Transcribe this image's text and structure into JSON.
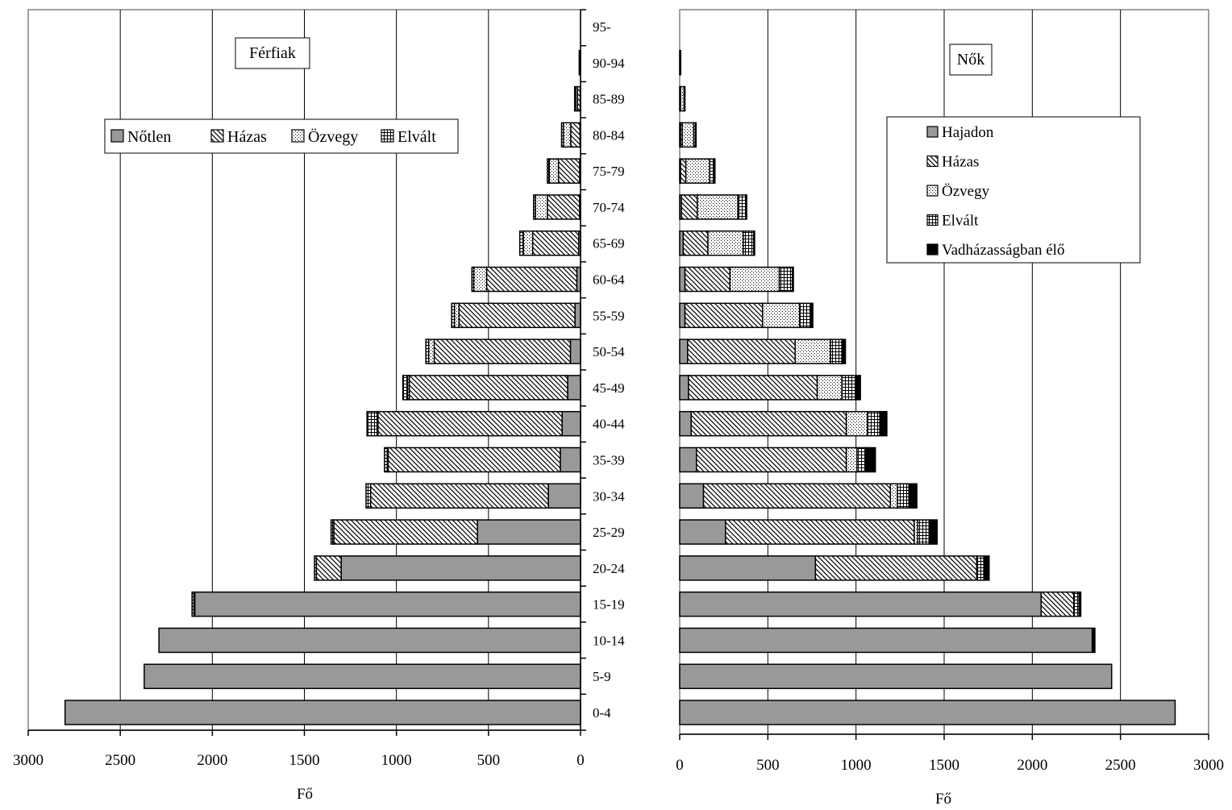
{
  "chart_data": [
    {
      "type": "bar",
      "orientation": "horizontal",
      "stacked": true,
      "direction": "right-to-left",
      "title": "Férfiak",
      "xlabel": "Fő",
      "xlim": [
        0,
        3000
      ],
      "xticks": [
        "3000",
        "2500",
        "2000",
        "1500",
        "1000",
        "500",
        "0"
      ],
      "grid": true,
      "legend": "top-left, horizontal",
      "categories": [
        "0-4",
        "5-9",
        "10-14",
        "15-19",
        "20-24",
        "25-29",
        "30-34",
        "35-39",
        "40-44",
        "45-49",
        "50-54",
        "55-59",
        "60-64",
        "65-69",
        "70-74",
        "75-79",
        "80-84",
        "85-89",
        "90-94",
        "95-"
      ],
      "series": [
        {
          "name": "Nőtlen",
          "pattern": "solid",
          "values": [
            2800,
            2370,
            2290,
            2095,
            1300,
            560,
            175,
            110,
            100,
            70,
            55,
            30,
            20,
            10,
            5,
            5,
            3,
            2,
            1,
            0
          ]
        },
        {
          "name": "Házas",
          "pattern": "diagonal",
          "values": [
            0,
            0,
            0,
            5,
            135,
            780,
            965,
            935,
            1000,
            860,
            740,
            630,
            490,
            250,
            175,
            115,
            50,
            15,
            5,
            0
          ]
        },
        {
          "name": "Özvegy",
          "pattern": "dotted",
          "values": [
            0,
            0,
            0,
            0,
            0,
            0,
            0,
            5,
            5,
            10,
            30,
            25,
            70,
            50,
            65,
            50,
            40,
            10,
            0,
            0
          ]
        },
        {
          "name": "Elvált",
          "pattern": "grid",
          "values": [
            0,
            0,
            0,
            10,
            10,
            15,
            25,
            15,
            55,
            25,
            15,
            15,
            10,
            20,
            10,
            10,
            10,
            5,
            1,
            0
          ]
        }
      ]
    },
    {
      "type": "bar",
      "orientation": "horizontal",
      "stacked": true,
      "direction": "left-to-right",
      "title": "Nők",
      "xlabel": "Fő",
      "xlim": [
        0,
        3000
      ],
      "xticks": [
        "0",
        "500",
        "1000",
        "1500",
        "2000",
        "2500",
        "3000"
      ],
      "grid": true,
      "legend": "top-right, vertical",
      "categories": [
        "0-4",
        "5-9",
        "10-14",
        "15-19",
        "20-24",
        "25-29",
        "30-34",
        "35-39",
        "40-44",
        "45-49",
        "50-54",
        "55-59",
        "60-64",
        "65-69",
        "70-74",
        "75-79",
        "80-84",
        "85-89",
        "90-94",
        "95-"
      ],
      "series": [
        {
          "name": "Hajadon",
          "pattern": "solid",
          "values": [
            2810,
            2450,
            2340,
            2050,
            770,
            260,
            135,
            95,
            65,
            50,
            45,
            30,
            30,
            20,
            10,
            5,
            5,
            2,
            1,
            0
          ]
        },
        {
          "name": "Házas",
          "pattern": "diagonal",
          "values": [
            0,
            0,
            0,
            185,
            915,
            1070,
            1060,
            850,
            880,
            730,
            610,
            440,
            255,
            140,
            90,
            30,
            10,
            3,
            0,
            0
          ]
        },
        {
          "name": "Özvegy",
          "pattern": "dotted",
          "values": [
            0,
            0,
            0,
            0,
            0,
            20,
            40,
            60,
            120,
            140,
            200,
            210,
            280,
            200,
            230,
            135,
            65,
            20,
            5,
            0
          ]
        },
        {
          "name": "Elvált",
          "pattern": "grid",
          "values": [
            0,
            0,
            0,
            30,
            40,
            65,
            65,
            50,
            70,
            80,
            65,
            60,
            75,
            60,
            45,
            25,
            10,
            3,
            0,
            0
          ]
        },
        {
          "name": "Vadházasságban élő",
          "pattern": "black",
          "values": [
            0,
            0,
            15,
            10,
            30,
            45,
            45,
            55,
            40,
            25,
            20,
            15,
            5,
            5,
            5,
            5,
            3,
            2,
            0,
            0
          ]
        }
      ]
    }
  ]
}
